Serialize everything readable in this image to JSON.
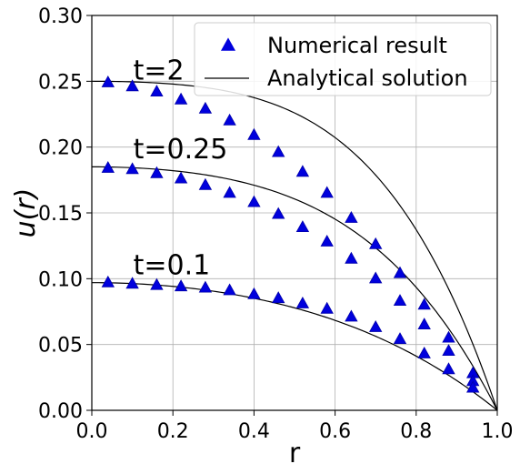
{
  "chart_data": {
    "type": "scatter",
    "xlabel": "r",
    "ylabel": "u(r)",
    "xlim": [
      0,
      1
    ],
    "ylim": [
      0,
      0.3
    ],
    "x_ticks": [
      0.0,
      0.2,
      0.4,
      0.6,
      0.8,
      1.0
    ],
    "x_tick_labels": [
      "0.0",
      "0.2",
      "0.4",
      "0.6",
      "0.8",
      "1.0"
    ],
    "y_ticks": [
      0.0,
      0.05,
      0.1,
      0.15,
      0.2,
      0.25,
      0.3
    ],
    "y_tick_labels": [
      "0.00",
      "0.05",
      "0.10",
      "0.15",
      "0.20",
      "0.25",
      "0.30"
    ],
    "grid": true,
    "legend_position": "top-right",
    "legend": [
      {
        "label": "Numerical result",
        "marker": "triangle",
        "color": "#0000dd"
      },
      {
        "label": "Analytical solution",
        "marker": "line",
        "color": "#000000"
      }
    ],
    "annotations": [
      {
        "text": "t=2",
        "x": 0.1,
        "y": 0.25
      },
      {
        "text": "t=0.25",
        "x": 0.1,
        "y": 0.19
      },
      {
        "text": "t=0.1",
        "x": 0.1,
        "y": 0.102
      }
    ],
    "series": [
      {
        "label": "t=2",
        "curve_a": 0.25,
        "curve_b": 0.82,
        "x": [
          0.04,
          0.1,
          0.16,
          0.22,
          0.28,
          0.34,
          0.4,
          0.46,
          0.52,
          0.58,
          0.64,
          0.7,
          0.76,
          0.82,
          0.88,
          0.94
        ],
        "y": [
          0.249,
          0.246,
          0.242,
          0.236,
          0.229,
          0.22,
          0.209,
          0.196,
          0.181,
          0.165,
          0.146,
          0.126,
          0.104,
          0.08,
          0.055,
          0.028
        ]
      },
      {
        "label": "t=0.25",
        "curve_a": 0.185,
        "curve_b": 0.63,
        "x": [
          0.04,
          0.1,
          0.16,
          0.22,
          0.28,
          0.34,
          0.4,
          0.46,
          0.52,
          0.58,
          0.64,
          0.7,
          0.76,
          0.82,
          0.88,
          0.94
        ],
        "y": [
          0.184,
          0.183,
          0.18,
          0.176,
          0.171,
          0.165,
          0.158,
          0.149,
          0.139,
          0.128,
          0.115,
          0.1,
          0.083,
          0.065,
          0.045,
          0.022
        ]
      },
      {
        "label": "t=0.1",
        "curve_a": 0.097,
        "curve_b": 0.28,
        "x": [
          0.04,
          0.1,
          0.16,
          0.22,
          0.28,
          0.34,
          0.4,
          0.46,
          0.52,
          0.58,
          0.64,
          0.7,
          0.76,
          0.82,
          0.88,
          0.94
        ],
        "y": [
          0.097,
          0.096,
          0.095,
          0.094,
          0.093,
          0.091,
          0.088,
          0.085,
          0.081,
          0.077,
          0.071,
          0.063,
          0.054,
          0.043,
          0.031,
          0.017
        ]
      }
    ]
  }
}
